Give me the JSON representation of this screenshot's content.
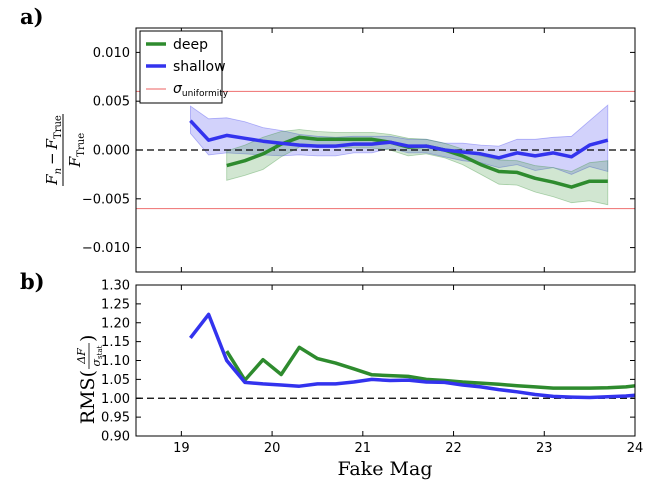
{
  "colors": {
    "deep": "#2e8b2e",
    "shallow": "#3333ee",
    "uniformity": "#f08080",
    "zero_line": "#000000"
  },
  "chart_data": [
    {
      "panel": "a)",
      "type": "line",
      "xlabel": "",
      "ylabel": {
        "numerator_main": "F",
        "numerator_sub": "n",
        "minus": "−",
        "numerator_main2": "F",
        "numerator_sub2": "True",
        "denominator_main": "F",
        "denominator_sub": "True"
      },
      "xlim": [
        18.5,
        24
      ],
      "ylim": [
        -0.0125,
        0.0125
      ],
      "yticks": [
        -0.01,
        -0.005,
        0.0,
        0.005,
        0.01
      ],
      "ytick_labels": [
        "−0.010",
        "−0.005",
        "0.000",
        "0.005",
        "0.010"
      ],
      "hlines": [
        {
          "y": 0.006,
          "style": "solid",
          "color_key": "uniformity"
        },
        {
          "y": -0.006,
          "style": "solid",
          "color_key": "uniformity"
        },
        {
          "y": 0.0,
          "style": "dashed",
          "color_key": "zero_line"
        }
      ],
      "legend": {
        "position": "top-left",
        "entries": [
          {
            "label": "deep",
            "color_key": "deep"
          },
          {
            "label": "shallow",
            "color_key": "shallow"
          },
          {
            "label_main": "σ",
            "label_sub": "uniformity",
            "color_key": "uniformity"
          }
        ]
      },
      "series": [
        {
          "name": "deep",
          "color_key": "deep",
          "x": [
            19.5,
            19.7,
            19.9,
            20.1,
            20.3,
            20.5,
            20.7,
            20.9,
            21.1,
            21.3,
            21.5,
            21.7,
            21.9,
            22.1,
            22.3,
            22.5,
            22.7,
            22.9,
            23.1,
            23.3,
            23.5,
            23.7
          ],
          "y": [
            -0.0016,
            -0.0011,
            -0.0004,
            0.0006,
            0.0013,
            0.0011,
            0.0011,
            0.0011,
            0.0011,
            0.0008,
            0.0003,
            0.0004,
            0.0,
            -0.0006,
            -0.0015,
            -0.0022,
            -0.0023,
            -0.0029,
            -0.0033,
            -0.0038,
            -0.0032,
            -0.0032
          ],
          "upper": [
            -0.0001,
            0.0005,
            0.0013,
            0.0019,
            0.0021,
            0.0019,
            0.0018,
            0.0018,
            0.0018,
            0.0016,
            0.0012,
            0.0011,
            0.0007,
            0.0001,
            -0.0006,
            -0.001,
            -0.0011,
            -0.0016,
            -0.0018,
            -0.0022,
            -0.0013,
            -0.0011
          ],
          "lower": [
            -0.0031,
            -0.0026,
            -0.002,
            -0.0007,
            0.0003,
            0.0003,
            0.0003,
            0.0002,
            0.0002,
            0.0,
            -0.0006,
            -0.0004,
            -0.0008,
            -0.0015,
            -0.0025,
            -0.0035,
            -0.0036,
            -0.0043,
            -0.0048,
            -0.0054,
            -0.0052,
            -0.0056
          ]
        },
        {
          "name": "shallow",
          "color_key": "shallow",
          "x": [
            19.1,
            19.3,
            19.5,
            19.7,
            19.9,
            20.1,
            20.3,
            20.5,
            20.7,
            20.9,
            21.1,
            21.3,
            21.5,
            21.7,
            21.9,
            22.1,
            22.3,
            22.5,
            22.7,
            22.9,
            23.1,
            23.3,
            23.5,
            23.7
          ],
          "y": [
            0.003,
            0.001,
            0.0015,
            0.0012,
            0.0009,
            0.0007,
            0.0005,
            0.0004,
            0.0004,
            0.0006,
            0.0006,
            0.0008,
            0.0004,
            0.0004,
            0.0,
            -0.0002,
            -0.0004,
            -0.0008,
            -0.0003,
            -0.0006,
            -0.0003,
            -0.0007,
            0.0005,
            0.001
          ],
          "upper": [
            0.0045,
            0.0032,
            0.0033,
            0.0029,
            0.0023,
            0.002,
            0.0016,
            0.0014,
            0.0013,
            0.0014,
            0.0014,
            0.0014,
            0.0011,
            0.0011,
            0.0007,
            0.0007,
            0.0005,
            0.0004,
            0.0011,
            0.0011,
            0.0013,
            0.0014,
            0.003,
            0.0046
          ],
          "lower": [
            0.0017,
            -0.0005,
            -0.0003,
            -0.0004,
            -0.0005,
            -0.0006,
            -0.0005,
            -0.0006,
            -0.0006,
            -0.0003,
            -0.0003,
            0.0002,
            -0.0003,
            -0.0003,
            -0.0007,
            -0.0011,
            -0.0013,
            -0.0018,
            -0.0015,
            -0.0021,
            -0.0018,
            -0.0025,
            -0.0017,
            -0.0022
          ]
        }
      ]
    },
    {
      "panel": "b)",
      "type": "line",
      "xlabel": "Fake Mag",
      "ylabel": {
        "prefix": "RMS(",
        "numerator": "ΔF",
        "denominator_main": "σ",
        "denominator_sub": "stat",
        "suffix": ")"
      },
      "xlim": [
        18.5,
        24
      ],
      "xticks": [
        19,
        20,
        21,
        22,
        23,
        24
      ],
      "xtick_labels": [
        "19",
        "20",
        "21",
        "22",
        "23",
        "24"
      ],
      "ylim": [
        0.9,
        1.3
      ],
      "yticks": [
        0.9,
        0.95,
        1.0,
        1.05,
        1.1,
        1.15,
        1.2,
        1.25,
        1.3
      ],
      "ytick_labels": [
        "0.90",
        "0.95",
        "1.00",
        "1.05",
        "1.10",
        "1.15",
        "1.20",
        "1.25",
        "1.30"
      ],
      "hlines": [
        {
          "y": 1.0,
          "style": "dashed",
          "color_key": "zero_line"
        }
      ],
      "series": [
        {
          "name": "deep",
          "color_key": "deep",
          "x": [
            19.5,
            19.7,
            19.9,
            20.1,
            20.3,
            20.5,
            20.7,
            20.9,
            21.1,
            21.3,
            21.5,
            21.7,
            21.9,
            22.1,
            22.3,
            22.5,
            22.7,
            22.9,
            23.1,
            23.3,
            23.5,
            23.7,
            23.9,
            24.0
          ],
          "y": [
            1.125,
            1.048,
            1.102,
            1.063,
            1.135,
            1.105,
            1.093,
            1.078,
            1.062,
            1.06,
            1.058,
            1.05,
            1.047,
            1.043,
            1.04,
            1.037,
            1.033,
            1.03,
            1.027,
            1.027,
            1.027,
            1.028,
            1.03,
            1.033
          ]
        },
        {
          "name": "shallow",
          "color_key": "shallow",
          "x": [
            19.1,
            19.3,
            19.5,
            19.7,
            19.9,
            20.1,
            20.3,
            20.5,
            20.7,
            20.9,
            21.1,
            21.3,
            21.5,
            21.7,
            21.9,
            22.1,
            22.3,
            22.5,
            22.7,
            22.9,
            23.1,
            23.3,
            23.5,
            23.7,
            23.9,
            24.0
          ],
          "y": [
            1.16,
            1.222,
            1.1,
            1.042,
            1.038,
            1.035,
            1.032,
            1.038,
            1.038,
            1.043,
            1.05,
            1.047,
            1.048,
            1.043,
            1.042,
            1.035,
            1.03,
            1.023,
            1.017,
            1.01,
            1.005,
            1.003,
            1.002,
            1.004,
            1.006,
            1.008
          ]
        }
      ]
    }
  ]
}
